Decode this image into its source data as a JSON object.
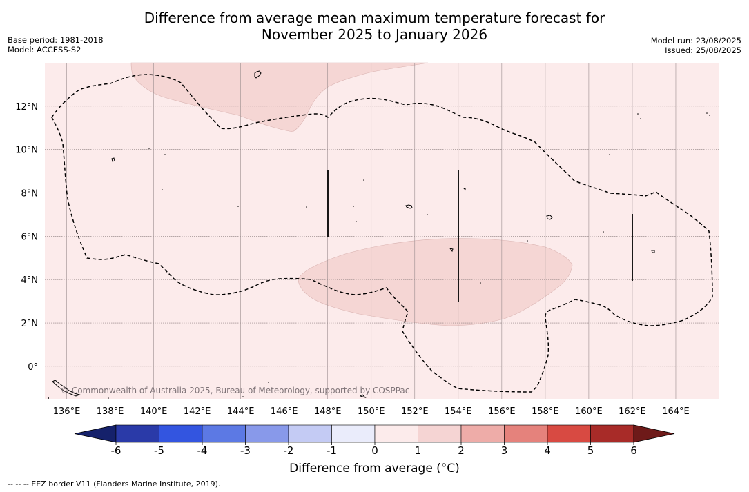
{
  "title_line1": "Difference from average mean maximum temperature forecast for",
  "title_line2": "November 2025 to January 2026",
  "base_period": "Base period: 1981-2018",
  "model": "Model: ACCESS-S2",
  "model_run": "Model run: 23/08/2025",
  "issued": "Issued: 25/08/2025",
  "copyright": "© Commonwealth of Australia 2025, Bureau of Meteorology, supported by COSPPac",
  "map": {
    "lon_range": [
      135,
      166
    ],
    "lat_range": [
      -1.5,
      14
    ],
    "lon_ticks": [
      "136°E",
      "138°E",
      "140°E",
      "142°E",
      "144°E",
      "146°E",
      "148°E",
      "150°E",
      "152°E",
      "154°E",
      "156°E",
      "158°E",
      "160°E",
      "162°E",
      "164°E"
    ],
    "lat_ticks": [
      "0°",
      "2°N",
      "4°N",
      "6°N",
      "8°N",
      "10°N",
      "12°N"
    ],
    "gridlines": true,
    "background_class": "0 to 1",
    "highlight_class": "1 to 2"
  },
  "colorbar": {
    "label": "Difference from average (°C)",
    "ticks": [
      "-6",
      "-5",
      "-4",
      "-3",
      "-2",
      "-1",
      "0",
      "1",
      "2",
      "3",
      "4",
      "5",
      "6"
    ],
    "colors": [
      "#15216b",
      "#2a3aa8",
      "#3355e0",
      "#5c79e4",
      "#8899ea",
      "#c4cbf4",
      "#eaecfb",
      "#fcebeb",
      "#f5d4d3",
      "#eeaca8",
      "#e5827c",
      "#d84a42",
      "#a82b28",
      "#6e1a19"
    ]
  },
  "footnote": "-- -- -- EEZ border V11 (Flanders Marine Institute, 2019)."
}
